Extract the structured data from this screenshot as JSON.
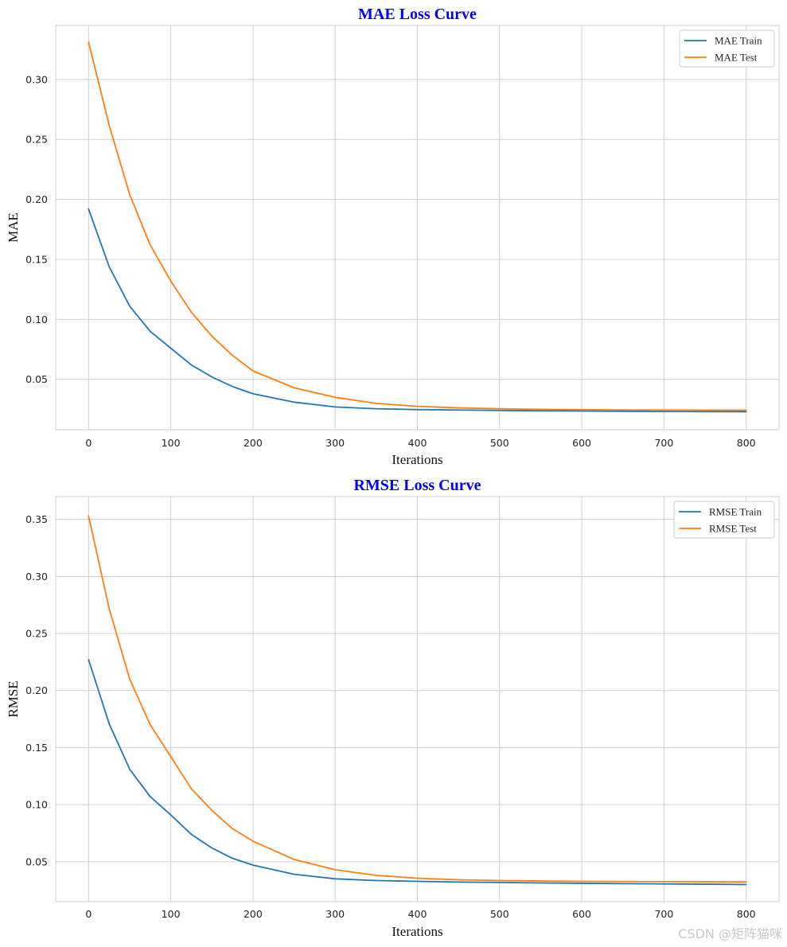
{
  "watermark": "CSDN @矩阵猫咪",
  "chart_data": [
    {
      "type": "line",
      "title": "MAE Loss Curve",
      "xlabel": "Iterations",
      "ylabel": "MAE",
      "xlim": [
        -40,
        840
      ],
      "ylim": [
        0.008,
        0.345
      ],
      "xticks": [
        0,
        100,
        200,
        300,
        400,
        500,
        600,
        700,
        800
      ],
      "yticks": [
        0.05,
        0.1,
        0.15,
        0.2,
        0.25,
        0.3
      ],
      "grid": true,
      "legend": "top-right",
      "x": [
        0,
        25,
        50,
        75,
        100,
        125,
        150,
        175,
        200,
        250,
        300,
        350,
        400,
        450,
        500,
        550,
        600,
        650,
        700,
        750,
        800
      ],
      "series": [
        {
          "name": "MAE Train",
          "color": "#1f77b4",
          "values": [
            0.192,
            0.144,
            0.111,
            0.09,
            0.076,
            0.062,
            0.052,
            0.044,
            0.038,
            0.031,
            0.027,
            0.0255,
            0.0248,
            0.0244,
            0.0241,
            0.0238,
            0.0236,
            0.0234,
            0.0232,
            0.0231,
            0.023
          ]
        },
        {
          "name": "MAE Test",
          "color": "#ff7f0e",
          "values": [
            0.331,
            0.262,
            0.204,
            0.162,
            0.132,
            0.106,
            0.086,
            0.07,
            0.057,
            0.043,
            0.035,
            0.03,
            0.0275,
            0.0262,
            0.0255,
            0.025,
            0.0247,
            0.0245,
            0.0244,
            0.0243,
            0.0242
          ]
        }
      ]
    },
    {
      "type": "line",
      "title": "RMSE Loss Curve",
      "xlabel": "Iterations",
      "ylabel": "RMSE",
      "xlim": [
        -40,
        840
      ],
      "ylim": [
        0.015,
        0.37
      ],
      "xticks": [
        0,
        100,
        200,
        300,
        400,
        500,
        600,
        700,
        800
      ],
      "yticks": [
        0.05,
        0.1,
        0.15,
        0.2,
        0.25,
        0.3,
        0.35
      ],
      "grid": true,
      "legend": "top-right",
      "x": [
        0,
        25,
        50,
        75,
        100,
        125,
        150,
        175,
        200,
        250,
        300,
        350,
        400,
        450,
        500,
        550,
        600,
        650,
        700,
        750,
        800
      ],
      "series": [
        {
          "name": "RMSE Train",
          "color": "#1f77b4",
          "values": [
            0.227,
            0.171,
            0.131,
            0.107,
            0.091,
            0.074,
            0.062,
            0.053,
            0.047,
            0.039,
            0.035,
            0.0335,
            0.0328,
            0.0322,
            0.0318,
            0.0314,
            0.0311,
            0.0308,
            0.0305,
            0.0303,
            0.03
          ]
        },
        {
          "name": "RMSE Test",
          "color": "#ff7f0e",
          "values": [
            0.353,
            0.272,
            0.21,
            0.17,
            0.142,
            0.114,
            0.095,
            0.079,
            0.068,
            0.052,
            0.043,
            0.038,
            0.0355,
            0.0342,
            0.0335,
            0.0331,
            0.0328,
            0.0326,
            0.0325,
            0.0324,
            0.0323
          ]
        }
      ]
    }
  ]
}
